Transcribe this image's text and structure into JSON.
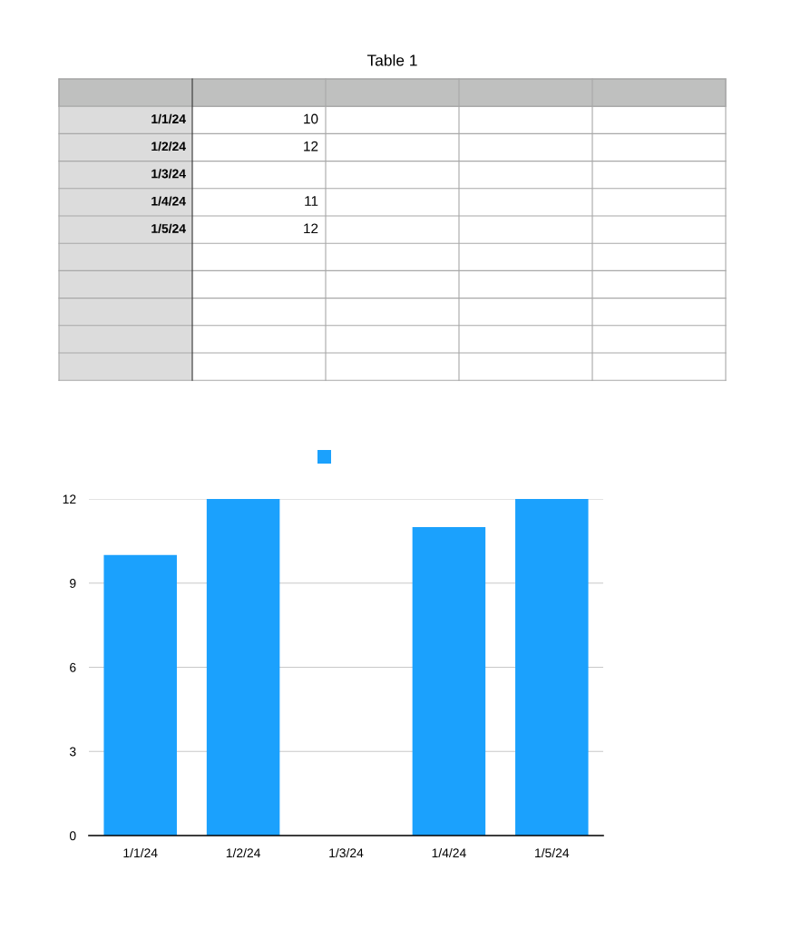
{
  "chart_data": {
    "type": "bar",
    "title": "Table 1",
    "categories": [
      "1/1/24",
      "1/2/24",
      "1/3/24",
      "1/4/24",
      "1/5/24"
    ],
    "series": [
      {
        "color": "#1ba1fd",
        "values": [
          10,
          12,
          null,
          11,
          12
        ]
      }
    ],
    "ylim": [
      0,
      12
    ],
    "yticks": [
      0,
      3,
      6,
      9,
      12
    ],
    "grid": "y",
    "annotations": [
      "10",
      "12",
      "11",
      "12"
    ]
  }
}
